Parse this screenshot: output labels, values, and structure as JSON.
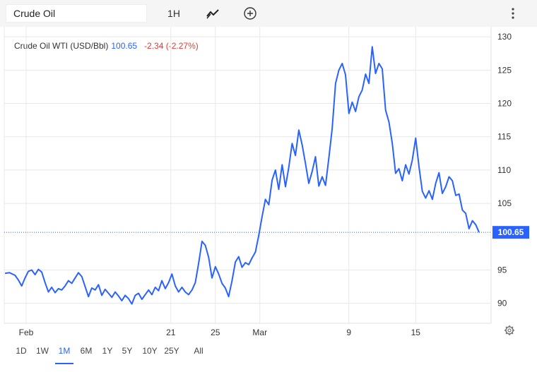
{
  "toolbar": {
    "search_value": "Crude Oil",
    "interval_label": "1H",
    "chart_type_icon": "line-chart-icon",
    "compare_icon": "plus-circle-icon",
    "more_icon": "vertical-dots-icon"
  },
  "legend": {
    "name": "Crude Oil WTI (USD/Bbl)",
    "value": "100.65",
    "change": "-2.34 (-2.27%)"
  },
  "ranges": [
    "1D",
    "1W",
    "1M",
    "6M",
    "1Y",
    "5Y",
    "10Y",
    "25Y",
    "All"
  ],
  "active_range": "1M",
  "settings_icon": "gear-icon",
  "colors": {
    "line": "#2962ff",
    "negative": "#e53935",
    "grid": "#e8e8e8",
    "price_label_bg": "#2962ff"
  },
  "chart_data": {
    "type": "line",
    "title": "Crude Oil WTI (USD/Bbl)",
    "xlabel": "",
    "ylabel": "",
    "ylim": [
      87,
      131.5
    ],
    "y_ticks": [
      90,
      95,
      105,
      110,
      115,
      120,
      125,
      130
    ],
    "x_ticks": [
      {
        "label": "Feb",
        "x": 1
      },
      {
        "label": "21",
        "x": 14
      },
      {
        "label": "25",
        "x": 18
      },
      {
        "label": "Mar",
        "x": 22
      },
      {
        "label": "9",
        "x": 30
      },
      {
        "label": "15",
        "x": 36
      }
    ],
    "last_value": 100.65,
    "series": [
      {
        "values": [
          [
            -0.9,
            94.5
          ],
          [
            -0.5,
            94.6
          ],
          [
            0,
            94.2
          ],
          [
            0.3,
            93.5
          ],
          [
            0.6,
            92.6
          ],
          [
            0.9,
            93.8
          ],
          [
            1.2,
            94.8
          ],
          [
            1.5,
            95.0
          ],
          [
            1.8,
            94.3
          ],
          [
            2.1,
            95.1
          ],
          [
            2.4,
            94.7
          ],
          [
            2.7,
            93.1
          ],
          [
            3.0,
            91.7
          ],
          [
            3.3,
            92.4
          ],
          [
            3.6,
            91.6
          ],
          [
            3.9,
            92.2
          ],
          [
            4.2,
            92.0
          ],
          [
            4.5,
            92.6
          ],
          [
            4.8,
            93.4
          ],
          [
            5.1,
            93.0
          ],
          [
            5.4,
            93.8
          ],
          [
            5.7,
            94.6
          ],
          [
            6.0,
            94.0
          ],
          [
            6.3,
            92.5
          ],
          [
            6.6,
            91.0
          ],
          [
            6.9,
            92.3
          ],
          [
            7.2,
            92.0
          ],
          [
            7.5,
            92.8
          ],
          [
            7.8,
            91.2
          ],
          [
            8.1,
            92.1
          ],
          [
            8.4,
            91.5
          ],
          [
            8.7,
            90.9
          ],
          [
            9.0,
            91.7
          ],
          [
            9.3,
            91.1
          ],
          [
            9.6,
            90.4
          ],
          [
            9.9,
            91.2
          ],
          [
            10.2,
            90.7
          ],
          [
            10.5,
            89.9
          ],
          [
            10.8,
            91.2
          ],
          [
            11.1,
            91.5
          ],
          [
            11.4,
            90.6
          ],
          [
            11.7,
            91.3
          ],
          [
            12.0,
            92.0
          ],
          [
            12.3,
            91.3
          ],
          [
            12.6,
            92.4
          ],
          [
            12.9,
            91.9
          ],
          [
            13.2,
            93.4
          ],
          [
            13.5,
            92.2
          ],
          [
            13.8,
            93.1
          ],
          [
            14.1,
            94.4
          ],
          [
            14.4,
            92.6
          ],
          [
            14.7,
            91.7
          ],
          [
            15.0,
            92.4
          ],
          [
            15.3,
            91.7
          ],
          [
            15.6,
            91.3
          ],
          [
            15.9,
            92.0
          ],
          [
            16.2,
            93.1
          ],
          [
            16.5,
            96.0
          ],
          [
            16.8,
            99.3
          ],
          [
            17.1,
            98.7
          ],
          [
            17.4,
            96.9
          ],
          [
            17.7,
            93.8
          ],
          [
            18.0,
            95.5
          ],
          [
            18.3,
            94.4
          ],
          [
            18.6,
            93.0
          ],
          [
            18.9,
            92.3
          ],
          [
            19.2,
            91.0
          ],
          [
            19.5,
            93.4
          ],
          [
            19.8,
            96.2
          ],
          [
            20.1,
            97.0
          ],
          [
            20.4,
            95.4
          ],
          [
            20.7,
            96.1
          ],
          [
            21.0,
            95.8
          ],
          [
            21.3,
            96.8
          ],
          [
            21.6,
            97.7
          ],
          [
            21.9,
            100.2
          ],
          [
            22.2,
            103.0
          ],
          [
            22.5,
            105.6
          ],
          [
            22.8,
            104.8
          ],
          [
            23.1,
            108.5
          ],
          [
            23.4,
            110.0
          ],
          [
            23.7,
            107.1
          ],
          [
            24.0,
            110.8
          ],
          [
            24.3,
            107.5
          ],
          [
            24.6,
            110.4
          ],
          [
            24.9,
            114.0
          ],
          [
            25.2,
            112.2
          ],
          [
            25.5,
            116.0
          ],
          [
            25.8,
            113.8
          ],
          [
            26.1,
            111.0
          ],
          [
            26.4,
            108.0
          ],
          [
            26.7,
            109.8
          ],
          [
            27.0,
            112.0
          ],
          [
            27.3,
            107.6
          ],
          [
            27.6,
            109.0
          ],
          [
            27.9,
            107.7
          ],
          [
            28.2,
            111.8
          ],
          [
            28.5,
            116.2
          ],
          [
            28.8,
            123.0
          ],
          [
            29.1,
            125.0
          ],
          [
            29.4,
            126.0
          ],
          [
            29.7,
            124.3
          ],
          [
            30.0,
            118.5
          ],
          [
            30.3,
            120.2
          ],
          [
            30.6,
            118.8
          ],
          [
            30.9,
            121.0
          ],
          [
            31.2,
            122.0
          ],
          [
            31.5,
            124.4
          ],
          [
            31.8,
            123.0
          ],
          [
            32.1,
            128.5
          ],
          [
            32.4,
            124.5
          ],
          [
            32.7,
            126.0
          ],
          [
            33.0,
            125.2
          ],
          [
            33.3,
            119.0
          ],
          [
            33.6,
            117.2
          ],
          [
            33.9,
            114.0
          ],
          [
            34.2,
            109.5
          ],
          [
            34.5,
            110.2
          ],
          [
            34.8,
            108.4
          ],
          [
            35.1,
            110.8
          ],
          [
            35.4,
            109.4
          ],
          [
            35.7,
            111.5
          ],
          [
            36.0,
            114.8
          ],
          [
            36.3,
            110.5
          ],
          [
            36.6,
            106.8
          ],
          [
            36.9,
            105.8
          ],
          [
            37.2,
            106.9
          ],
          [
            37.5,
            105.6
          ],
          [
            37.8,
            108.0
          ],
          [
            38.1,
            109.6
          ],
          [
            38.4,
            106.5
          ],
          [
            38.7,
            107.5
          ],
          [
            39.0,
            109.0
          ],
          [
            39.3,
            108.4
          ],
          [
            39.6,
            106.2
          ],
          [
            39.9,
            106.4
          ],
          [
            40.2,
            104.0
          ],
          [
            40.5,
            103.5
          ],
          [
            40.8,
            101.2
          ],
          [
            41.1,
            102.4
          ],
          [
            41.4,
            101.8
          ],
          [
            41.7,
            100.65
          ]
        ]
      }
    ]
  }
}
